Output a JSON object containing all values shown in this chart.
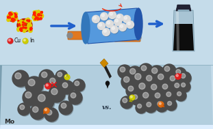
{
  "bg_color": "#c5dcea",
  "platform_top": "#b8d0e2",
  "platform_side": "#8aaec0",
  "platform_bottom": "#dce8f0",
  "mo_label": "Mo",
  "vs_label": "vs.",
  "cu_label": "Cu",
  "in_label": "In",
  "cu_color": "#dd2020",
  "in_color": "#cccc00",
  "orange_color": "#dd6a10",
  "dark_sphere": "#4a4a4a",
  "arrow_blue": "#2060cc",
  "mill_blue": "#4488cc",
  "mill_orange": "#e07820",
  "mill_dark": "#336699",
  "vial_glass": "#a8c8dc",
  "vial_cap": "#334455",
  "vial_ink": "#0a0a0a",
  "nanocrystal_red": "#cc2200",
  "nanocrystal_yellow": "#ddcc00"
}
